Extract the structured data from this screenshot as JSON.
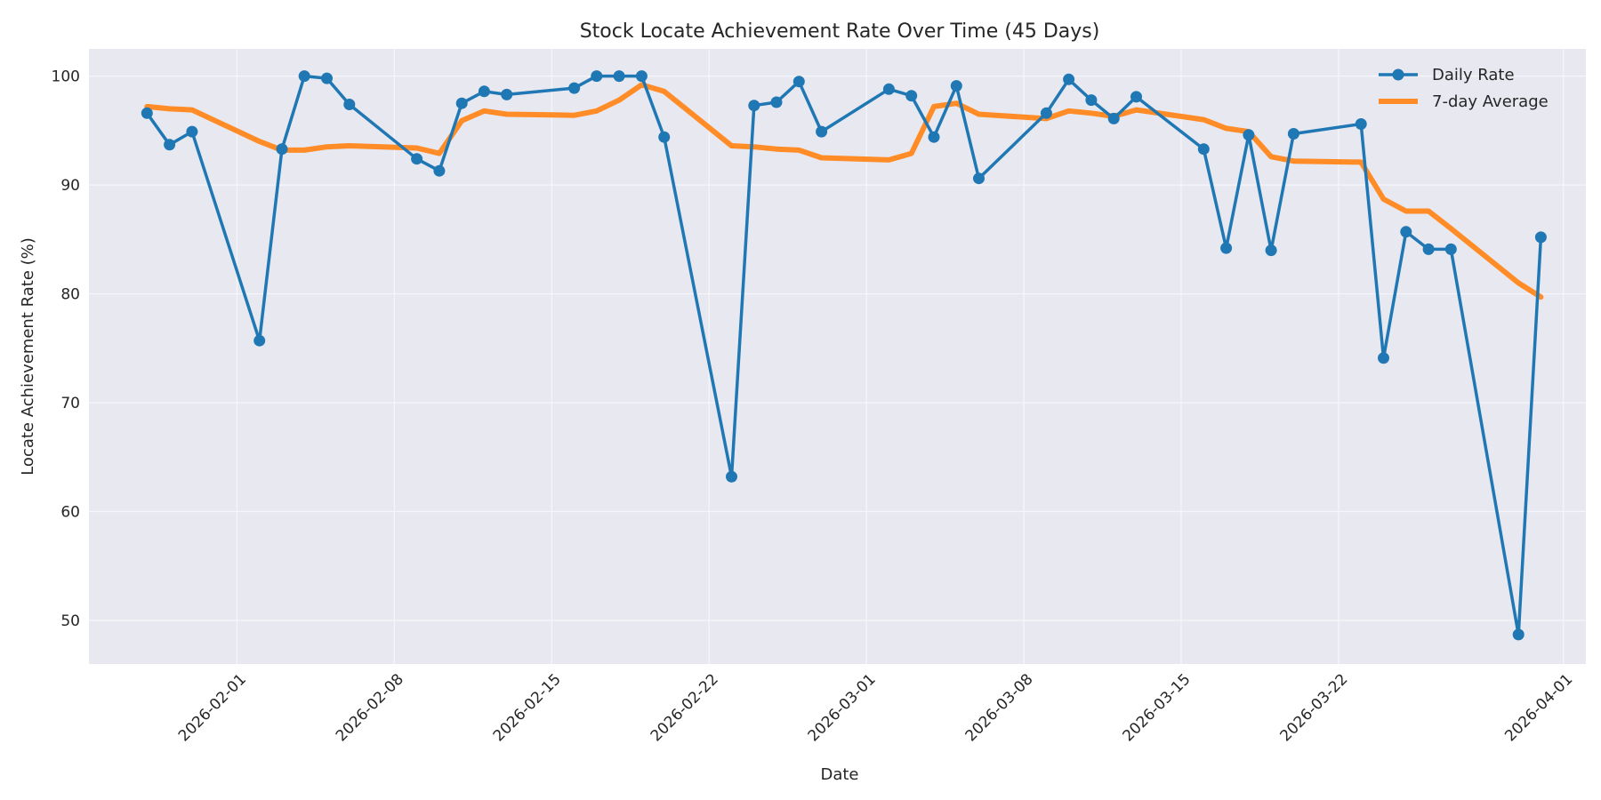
{
  "chart_data": {
    "type": "line",
    "title": "Stock Locate Achievement Rate Over Time (45 Days)",
    "xlabel": "Date",
    "ylabel": "Locate Achievement Rate (%)",
    "x_tick_labels": [
      "2026-02-01",
      "2026-02-08",
      "2026-02-15",
      "2026-02-22",
      "2026-03-01",
      "2026-03-08",
      "2026-03-15",
      "2026-03-22",
      "2026-04-01"
    ],
    "y_tick_labels": [
      "50",
      "60",
      "70",
      "80",
      "90",
      "100"
    ],
    "ylim": [
      46,
      102.5
    ],
    "xlim": [
      "2026-01-25T10:00",
      "2026-04-02T00:00"
    ],
    "grid": true,
    "legend_position": "top-right",
    "colors": {
      "daily": "#1f77b4",
      "average": "#ff8c27",
      "plot_bg": "#e8e8f1",
      "grid": "#f6f6fa"
    },
    "series": [
      {
        "name": "Daily Rate",
        "style": "line-with-markers",
        "x": [
          "2026-01-28",
          "2026-01-29",
          "2026-01-30",
          "2026-02-02",
          "2026-02-03",
          "2026-02-04",
          "2026-02-05",
          "2026-02-06",
          "2026-02-09",
          "2026-02-10",
          "2026-02-11",
          "2026-02-12",
          "2026-02-13",
          "2026-02-16",
          "2026-02-17",
          "2026-02-18",
          "2026-02-19",
          "2026-02-20",
          "2026-02-23",
          "2026-02-24",
          "2026-02-25",
          "2026-02-26",
          "2026-02-27",
          "2026-03-02",
          "2026-03-03",
          "2026-03-04",
          "2026-03-05",
          "2026-03-06",
          "2026-03-09",
          "2026-03-10",
          "2026-03-11",
          "2026-03-12",
          "2026-03-13",
          "2026-03-16",
          "2026-03-17",
          "2026-03-18",
          "2026-03-19",
          "2026-03-20",
          "2026-03-23",
          "2026-03-24",
          "2026-03-25",
          "2026-03-26",
          "2026-03-27",
          "2026-03-30",
          "2026-03-31"
        ],
        "values": [
          96.6,
          93.7,
          94.9,
          75.7,
          93.3,
          100.0,
          99.8,
          97.4,
          92.4,
          91.3,
          97.5,
          98.6,
          98.3,
          98.9,
          100.0,
          100.0,
          100.0,
          94.4,
          63.2,
          97.3,
          97.6,
          99.5,
          94.9,
          98.8,
          98.2,
          94.4,
          99.1,
          90.6,
          96.6,
          99.7,
          97.8,
          96.1,
          98.1,
          93.3,
          84.2,
          94.6,
          84.0,
          94.7,
          95.6,
          74.1,
          85.7,
          84.1,
          84.1,
          48.7,
          85.2
        ]
      },
      {
        "name": "7-day Average",
        "style": "line",
        "x": [
          "2026-01-28",
          "2026-01-29",
          "2026-01-30",
          "2026-02-02",
          "2026-02-03",
          "2026-02-04",
          "2026-02-05",
          "2026-02-06",
          "2026-02-09",
          "2026-02-10",
          "2026-02-11",
          "2026-02-12",
          "2026-02-13",
          "2026-02-16",
          "2026-02-17",
          "2026-02-18",
          "2026-02-19",
          "2026-02-20",
          "2026-02-23",
          "2026-02-24",
          "2026-02-25",
          "2026-02-26",
          "2026-02-27",
          "2026-03-02",
          "2026-03-03",
          "2026-03-04",
          "2026-03-05",
          "2026-03-06",
          "2026-03-09",
          "2026-03-10",
          "2026-03-11",
          "2026-03-12",
          "2026-03-13",
          "2026-03-16",
          "2026-03-17",
          "2026-03-18",
          "2026-03-19",
          "2026-03-20",
          "2026-03-23",
          "2026-03-24",
          "2026-03-25",
          "2026-03-26",
          "2026-03-27",
          "2026-03-30",
          "2026-03-31"
        ],
        "values": [
          97.2,
          97.0,
          96.9,
          94.0,
          93.2,
          93.2,
          93.5,
          93.6,
          93.4,
          92.9,
          95.9,
          96.8,
          96.5,
          96.4,
          96.8,
          97.8,
          99.2,
          98.6,
          93.6,
          93.5,
          93.3,
          93.2,
          92.5,
          92.3,
          92.9,
          97.2,
          97.5,
          96.5,
          96.1,
          96.8,
          96.6,
          96.3,
          96.9,
          96.0,
          95.2,
          94.9,
          92.6,
          92.2,
          92.1,
          88.7,
          87.6,
          87.6,
          86.0,
          81.0,
          79.7
        ]
      }
    ]
  }
}
